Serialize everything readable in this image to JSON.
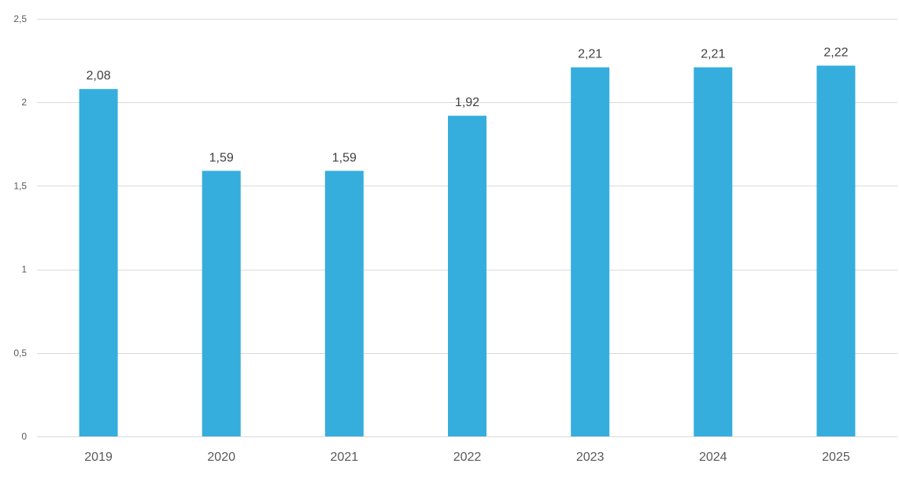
{
  "chart_data": {
    "type": "bar",
    "categories": [
      "2019",
      "2020",
      "2021",
      "2022",
      "2023",
      "2024",
      "2025"
    ],
    "values": [
      2.08,
      1.59,
      1.59,
      1.92,
      2.21,
      2.21,
      2.22
    ],
    "data_labels": [
      "2,08",
      "1,59",
      "1,59",
      "1,92",
      "2,21",
      "2,21",
      "2,22"
    ],
    "y_ticks": [
      {
        "value": 0,
        "label": "0"
      },
      {
        "value": 0.5,
        "label": "0,5"
      },
      {
        "value": 1,
        "label": "1"
      },
      {
        "value": 1.5,
        "label": "1,5"
      },
      {
        "value": 2,
        "label": "2"
      },
      {
        "value": 2.5,
        "label": "2,5"
      }
    ],
    "ylim": [
      0,
      2.5
    ],
    "title": "",
    "xlabel": "",
    "ylabel": "",
    "grid": true,
    "legend": "none",
    "colors": {
      "bar": "#35aede",
      "grid": "#d9d9d9",
      "tick_text": "#595959",
      "label_text": "#404040"
    }
  }
}
